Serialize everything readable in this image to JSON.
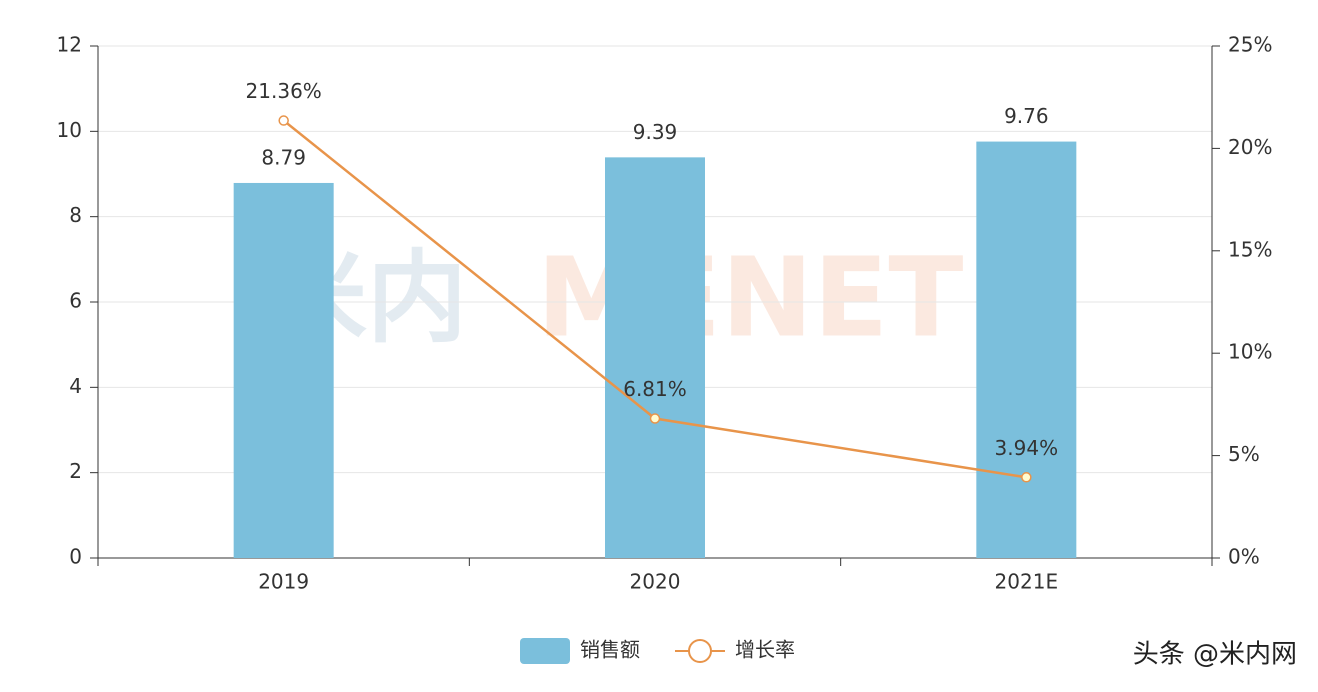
{
  "chart_data": {
    "type": "bar",
    "categories": [
      "2019",
      "2020",
      "2021E"
    ],
    "series": [
      {
        "name": "销售额",
        "type": "bar",
        "color": "#7bbfdc",
        "values": [
          8.79,
          9.39,
          9.76
        ]
      },
      {
        "name": "增长率",
        "type": "line",
        "axis": "y2",
        "color": "#e8944a",
        "values": [
          21.36,
          6.81,
          3.94
        ],
        "value_labels": [
          "21.36%",
          "6.81%",
          "3.94%"
        ]
      }
    ],
    "ylim": [
      0,
      12
    ],
    "yticks": [
      0,
      2,
      4,
      6,
      8,
      10,
      12
    ],
    "y2lim": [
      0,
      25
    ],
    "y2ticks": [
      {
        "value": 0,
        "label": "0%"
      },
      {
        "value": 5,
        "label": "5%"
      },
      {
        "value": 10,
        "label": "10%"
      },
      {
        "value": 15,
        "label": "15%"
      },
      {
        "value": 20,
        "label": "20%"
      },
      {
        "value": 25,
        "label": "25%"
      }
    ],
    "grid": true,
    "legend": "bottom",
    "watermark": [
      "米内",
      "MENET"
    ],
    "credit": "头条 @米内网"
  }
}
